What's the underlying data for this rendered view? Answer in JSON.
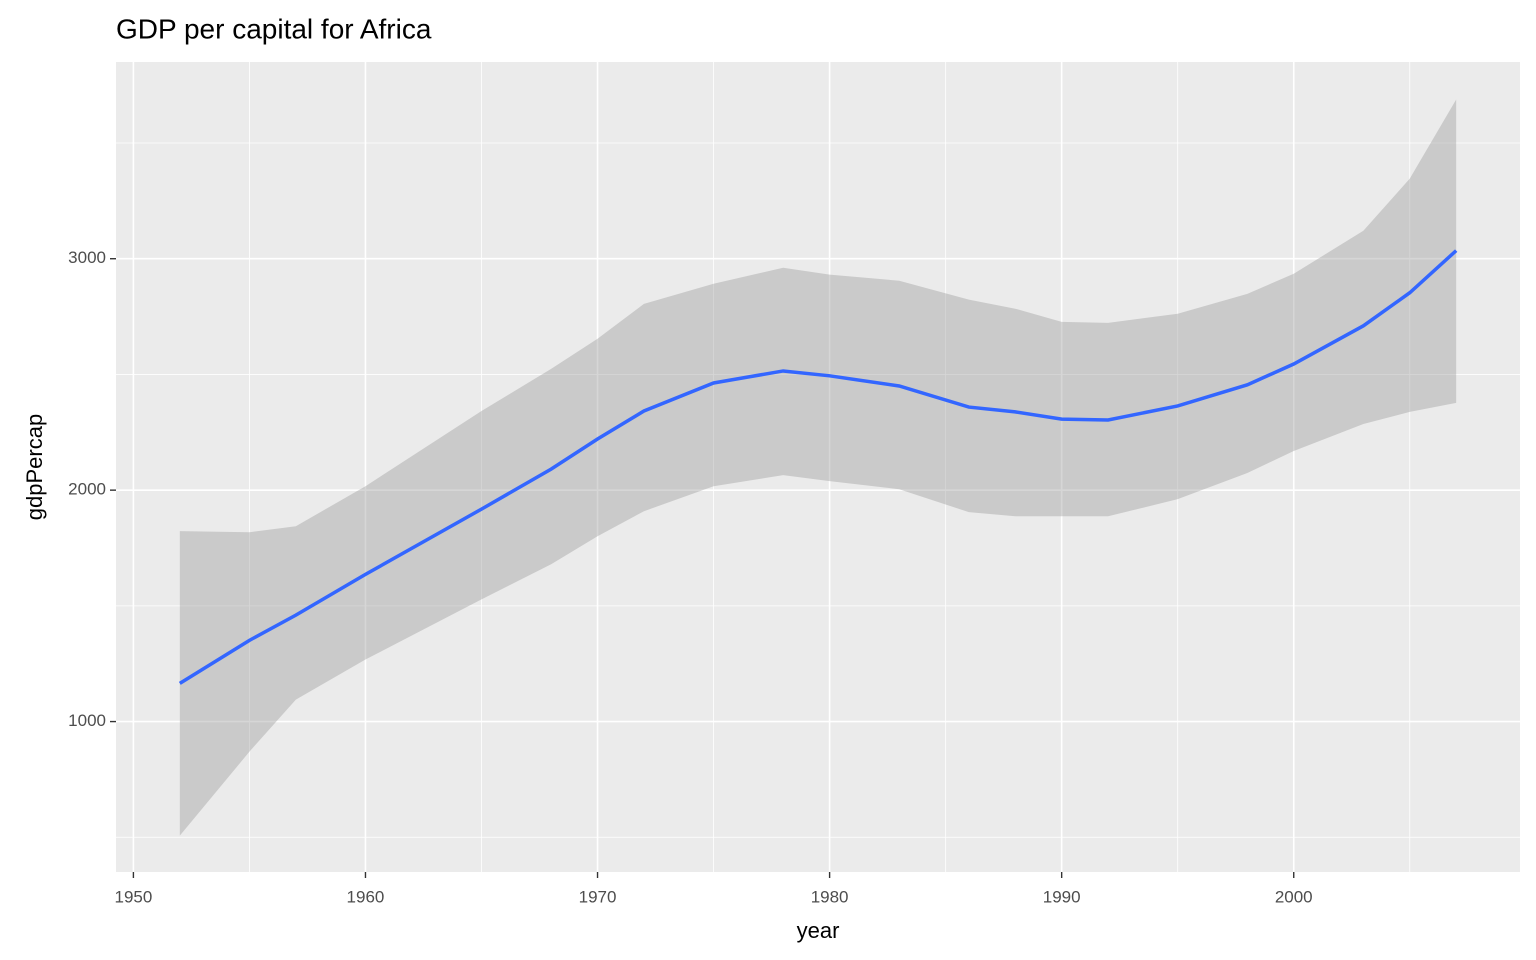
{
  "chart_data": {
    "type": "line",
    "title": "GDP per capital for Africa",
    "x_label": "year",
    "y_label": "gdpPercap",
    "x": [
      1952,
      1955,
      1957,
      1960,
      1965,
      1968,
      1970,
      1972,
      1975,
      1978,
      1980,
      1983,
      1986,
      1988,
      1990,
      1992,
      1995,
      1998,
      2000,
      2003,
      2005,
      2007
    ],
    "series": [
      {
        "color": "#3366FF",
        "values": [
          1165,
          1351,
          1460,
          1636,
          1918,
          2091,
          2221,
          2342,
          2463,
          2515,
          2494,
          2450,
          2359,
          2338,
          2307,
          2303,
          2364,
          2455,
          2545,
          2710,
          2853,
          3035
        ]
      }
    ],
    "band": {
      "color": "#999999",
      "upper": [
        1823,
        1818,
        1844,
        2017,
        2342,
        2524,
        2654,
        2805,
        2892,
        2961,
        2931,
        2905,
        2823,
        2784,
        2727,
        2723,
        2762,
        2848,
        2935,
        3121,
        3346,
        3688
      ],
      "lower": [
        507,
        870,
        1095,
        1268,
        1528,
        1680,
        1801,
        1909,
        2017,
        2065,
        2039,
        2004,
        1905,
        1887,
        1887,
        1887,
        1961,
        2074,
        2169,
        2286,
        2338,
        2377
      ]
    },
    "xlim": [
      1949.25,
      2009.75
    ],
    "ylim": [
      350,
      3850
    ],
    "xticks": [
      1950,
      1960,
      1970,
      1980,
      1990,
      2000
    ],
    "yticks": [
      1000,
      2000,
      3000
    ],
    "xminor": [
      1955,
      1965,
      1975,
      1985,
      1995,
      2005
    ],
    "yminor": [
      500,
      1500,
      2500,
      3500
    ],
    "grid": true
  }
}
